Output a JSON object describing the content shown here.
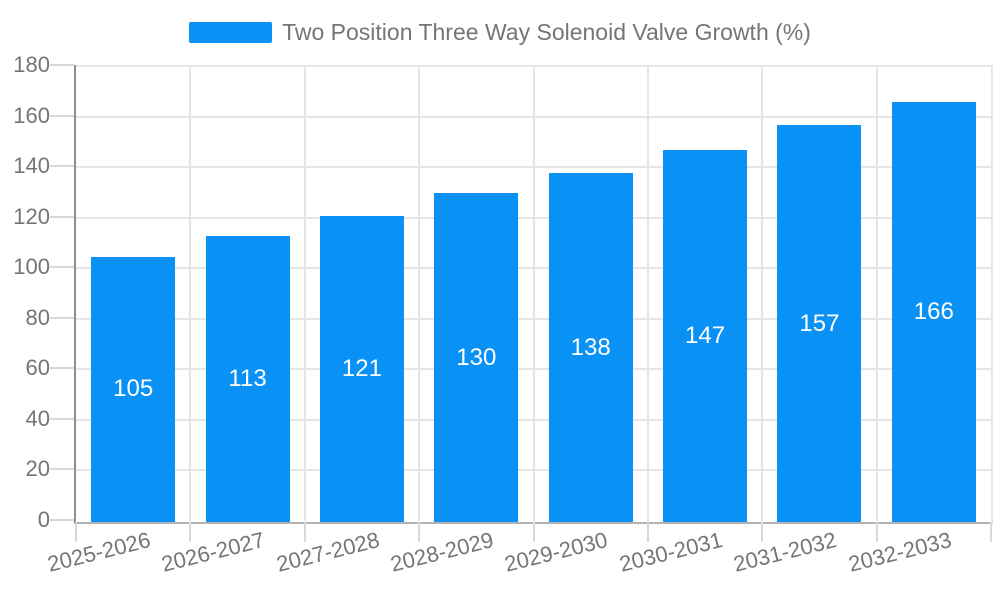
{
  "chart_data": {
    "type": "bar",
    "title": "Two Position Three Way Solenoid Valve Growth (%)",
    "categories": [
      "2025-2026",
      "2026-2027",
      "2027-2028",
      "2028-2029",
      "2029-2030",
      "2030-2031",
      "2031-2032",
      "2032-2033"
    ],
    "series": [
      {
        "name": "Two Position Three Way Solenoid Valve Growth (%)",
        "values": [
          105,
          113,
          121,
          130,
          138,
          147,
          157,
          166
        ]
      }
    ],
    "xlabel": "",
    "ylabel": "",
    "ylim": [
      0,
      180
    ],
    "y_step": 20,
    "grid": true,
    "legend_position": "top",
    "value_labels": "inside-center",
    "colors": {
      "bar": "#0991f6",
      "value_label": "#ffffff",
      "tick_text": "#757575",
      "title_text": "#757575",
      "grid_line": "#e6e6e6",
      "y_axis_line": "#8f8f8f",
      "baseline": "#b2b2b2",
      "tick_mark": "#d8d8d8",
      "background": "#ffffff"
    }
  }
}
